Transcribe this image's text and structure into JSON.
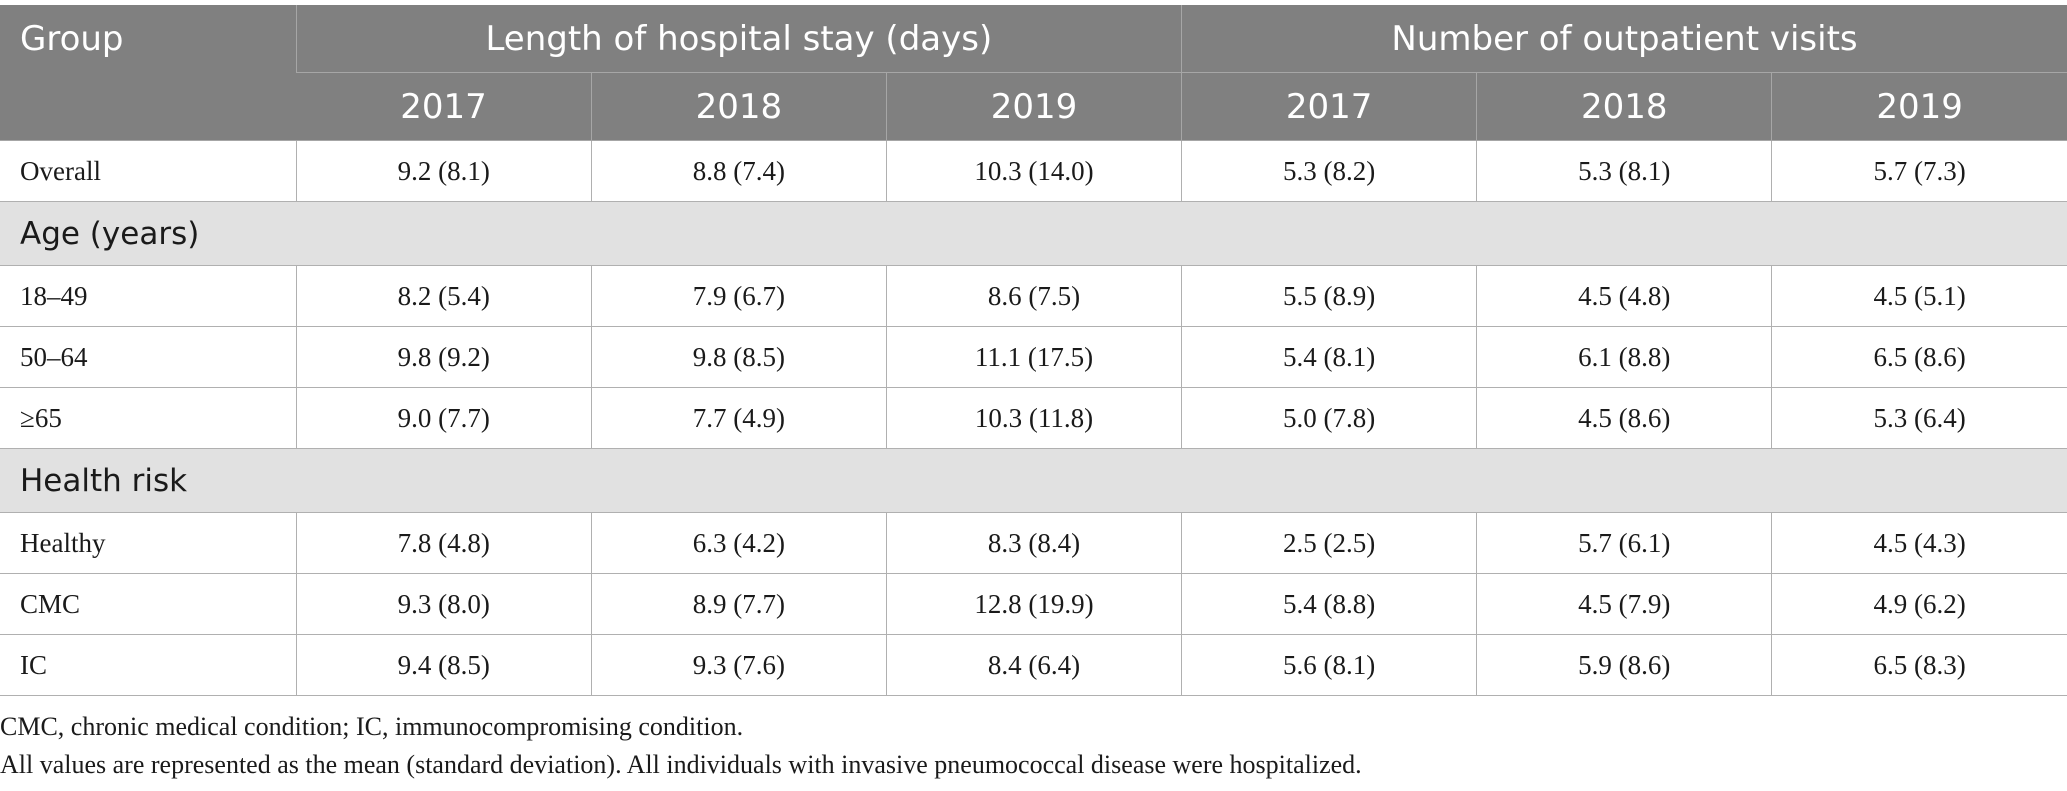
{
  "header": {
    "group": "Group",
    "col_group_1": "Length of hospital stay (days)",
    "col_group_2": "Number of outpatient visits",
    "years": [
      "2017",
      "2018",
      "2019",
      "2017",
      "2018",
      "2019"
    ]
  },
  "rows": {
    "overall": {
      "label": "Overall",
      "values": [
        "9.2 (8.1)",
        "8.8 (7.4)",
        "10.3 (14.0)",
        "5.3 (8.2)",
        "5.3 (8.1)",
        "5.7 (7.3)"
      ]
    },
    "age_section": "Age (years)",
    "age_18_49": {
      "label": "18–49",
      "values": [
        "8.2 (5.4)",
        "7.9 (6.7)",
        "8.6 (7.5)",
        "5.5 (8.9)",
        "4.5 (4.8)",
        "4.5 (5.1)"
      ]
    },
    "age_50_64": {
      "label": "50–64",
      "values": [
        "9.8 (9.2)",
        "9.8 (8.5)",
        "11.1 (17.5)",
        "5.4 (8.1)",
        "6.1 (8.8)",
        "6.5 (8.6)"
      ]
    },
    "age_65": {
      "label": "≥65",
      "values": [
        "9.0 (7.7)",
        "7.7 (4.9)",
        "10.3 (11.8)",
        "5.0 (7.8)",
        "4.5 (8.6)",
        "5.3 (6.4)"
      ]
    },
    "risk_section": "Health risk",
    "healthy": {
      "label": "Healthy",
      "values": [
        "7.8 (4.8)",
        "6.3 (4.2)",
        "8.3 (8.4)",
        "2.5 (2.5)",
        "5.7 (6.1)",
        "4.5 (4.3)"
      ]
    },
    "cmc": {
      "label": "CMC",
      "values": [
        "9.3 (8.0)",
        "8.9 (7.7)",
        "12.8 (19.9)",
        "5.4 (8.8)",
        "4.5 (7.9)",
        "4.9 (6.2)"
      ]
    },
    "ic": {
      "label": "IC",
      "values": [
        "9.4 (8.5)",
        "9.3 (7.6)",
        "8.4 (6.4)",
        "5.6 (8.1)",
        "5.9 (8.6)",
        "6.5 (8.3)"
      ]
    }
  },
  "footnotes": [
    "CMC, chronic medical condition; IC, immunocompromising condition.",
    "All values are represented as the mean (standard deviation). All individuals with invasive pneumococcal disease were hospitalized."
  ]
}
